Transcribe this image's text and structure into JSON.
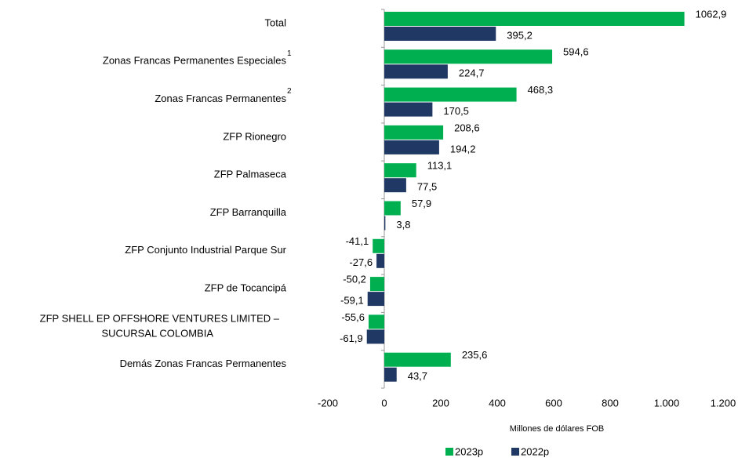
{
  "chart_data": {
    "type": "bar",
    "orientation": "horizontal",
    "categories": [
      "Total",
      "Zonas Francas Permanentes Especiales",
      "Zonas Francas Permanentes",
      "ZFP Rionegro",
      "ZFP Palmaseca",
      "ZFP Barranquilla",
      "ZFP Conjunto Industrial Parque Sur",
      "ZFP de Tocancipá",
      "ZFP SHELL EP OFFSHORE VENTURES LIMITED –\nSUCURSAL COLOMBIA",
      "Demás Zonas Francas Permanentes"
    ],
    "category_notes": [
      null,
      "1",
      "2",
      null,
      null,
      null,
      null,
      null,
      null,
      null
    ],
    "series": [
      {
        "name": "2023p",
        "color": "#00b050",
        "values": [
          1062.9,
          594.6,
          468.3,
          208.6,
          113.1,
          57.9,
          -41.1,
          -50.2,
          -55.6,
          235.6
        ],
        "value_labels": [
          "1062,9",
          "594,6",
          "468,3",
          "208,6",
          "113,1",
          "57,9",
          "-41,1",
          "-50,2",
          "-55,6",
          "235,6"
        ]
      },
      {
        "name": "2022p",
        "color": "#203864",
        "values": [
          395.2,
          224.7,
          170.5,
          194.2,
          77.5,
          3.8,
          -27.6,
          -59.1,
          -61.9,
          43.7
        ],
        "value_labels": [
          "395,2",
          "224,7",
          "170,5",
          "194,2",
          "77,5",
          "3,8",
          "-27,6",
          "-59,1",
          "-61,9",
          "43,7"
        ]
      }
    ],
    "xlabel": "Millones de dólares FOB",
    "xlim": [
      -200,
      1200
    ],
    "xticks": [
      -200,
      0,
      200,
      400,
      600,
      800,
      {
        "value": 1000,
        "label": "1.000"
      },
      {
        "value": 1200,
        "label": "1.200"
      }
    ],
    "legend": "bottom",
    "grid": false
  }
}
